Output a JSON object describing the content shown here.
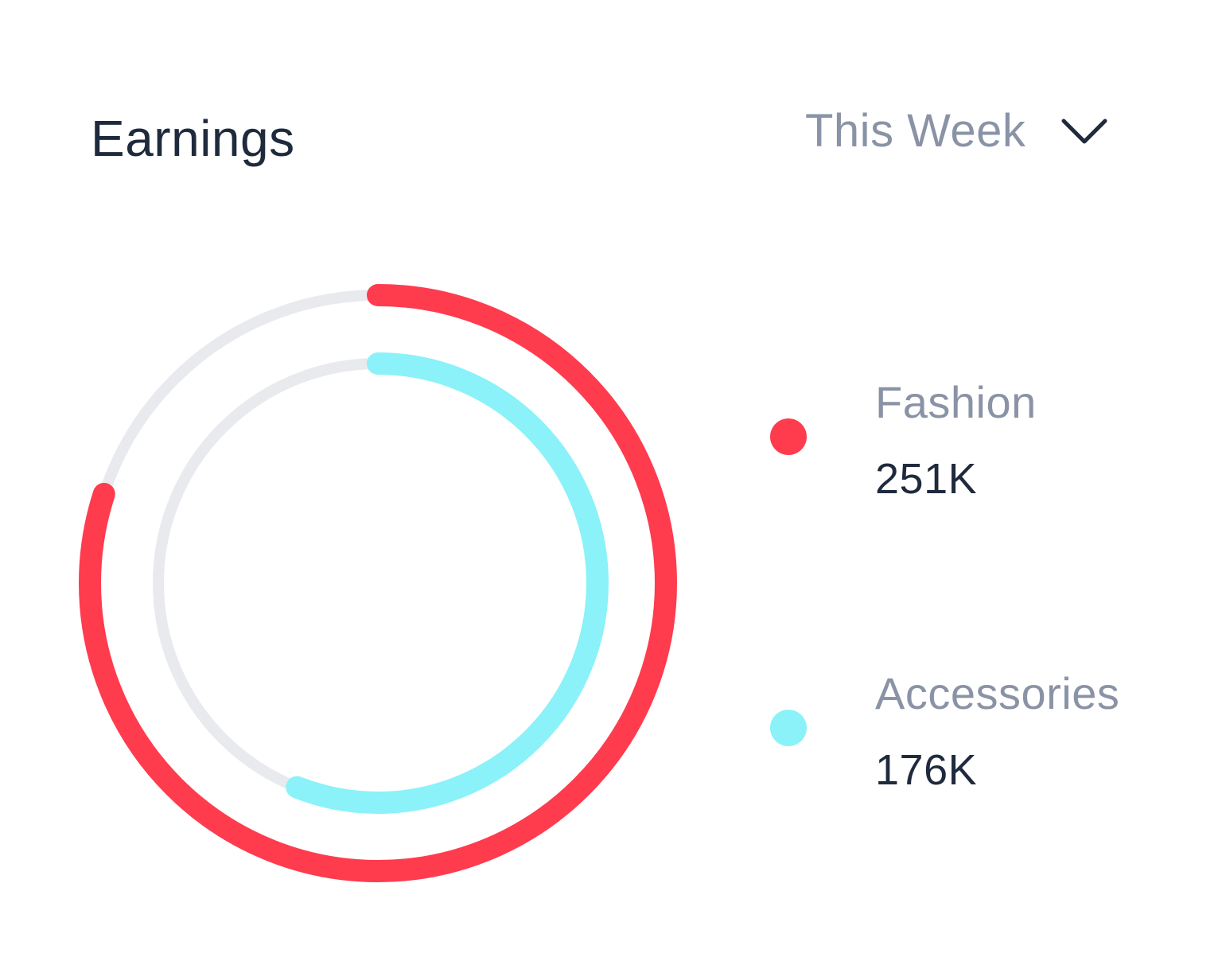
{
  "card": {
    "title": "Earnings",
    "period_label": "This Week"
  },
  "icons": {
    "dropdown": "chevron-down-icon"
  },
  "colors": {
    "fashion": "#ff3b4e",
    "accessories": "#8af2f8",
    "track": "#e8eaee",
    "title": "#1f2a3d",
    "muted": "#8a93a6"
  },
  "legend": [
    {
      "name": "Fashion",
      "value": "251K"
    },
    {
      "name": "Accessories",
      "value": "176K"
    }
  ],
  "chart_data": {
    "type": "radial-progress",
    "series": [
      {
        "name": "Fashion",
        "display_value": "251K",
        "fraction": 0.8
      },
      {
        "name": "Accessories",
        "display_value": "176K",
        "fraction": 0.56
      }
    ]
  }
}
